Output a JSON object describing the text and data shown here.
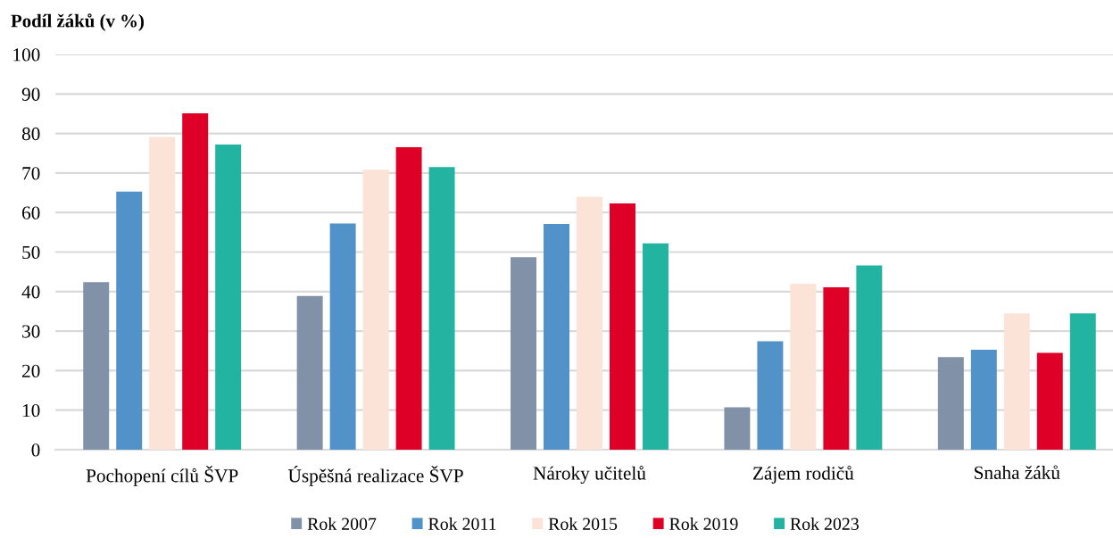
{
  "chart_data": {
    "type": "bar",
    "ylabel": "Podíl žáků (v %)",
    "categories": [
      "Pochopení cílů ŠVP",
      "Úspěšná realizace ŠVP",
      "Nároky učitelů",
      "Zájem rodičů",
      "Snaha žáků"
    ],
    "series": [
      {
        "name": "Rok 2007",
        "color": "#8191a8",
        "values": [
          42.4,
          38.9,
          48.7,
          10.7,
          23.4
        ]
      },
      {
        "name": "Rok 2011",
        "color": "#5192c9",
        "values": [
          65.3,
          57.2,
          57.1,
          27.4,
          25.3
        ]
      },
      {
        "name": "Rok 2015",
        "color": "#fbe3d7",
        "values": [
          79.1,
          70.8,
          64.0,
          42.0,
          34.5
        ]
      },
      {
        "name": "Rok 2019",
        "color": "#de0027",
        "values": [
          85.1,
          76.5,
          62.3,
          41.1,
          24.5
        ]
      },
      {
        "name": "Rok 2023",
        "color": "#22b3a1",
        "values": [
          77.2,
          71.5,
          52.2,
          46.6,
          34.5
        ]
      }
    ],
    "ylim": [
      0,
      100
    ],
    "yticks": [
      0,
      10,
      20,
      30,
      40,
      50,
      60,
      70,
      80,
      90,
      100
    ],
    "grid": "y",
    "legend": "bottom"
  }
}
